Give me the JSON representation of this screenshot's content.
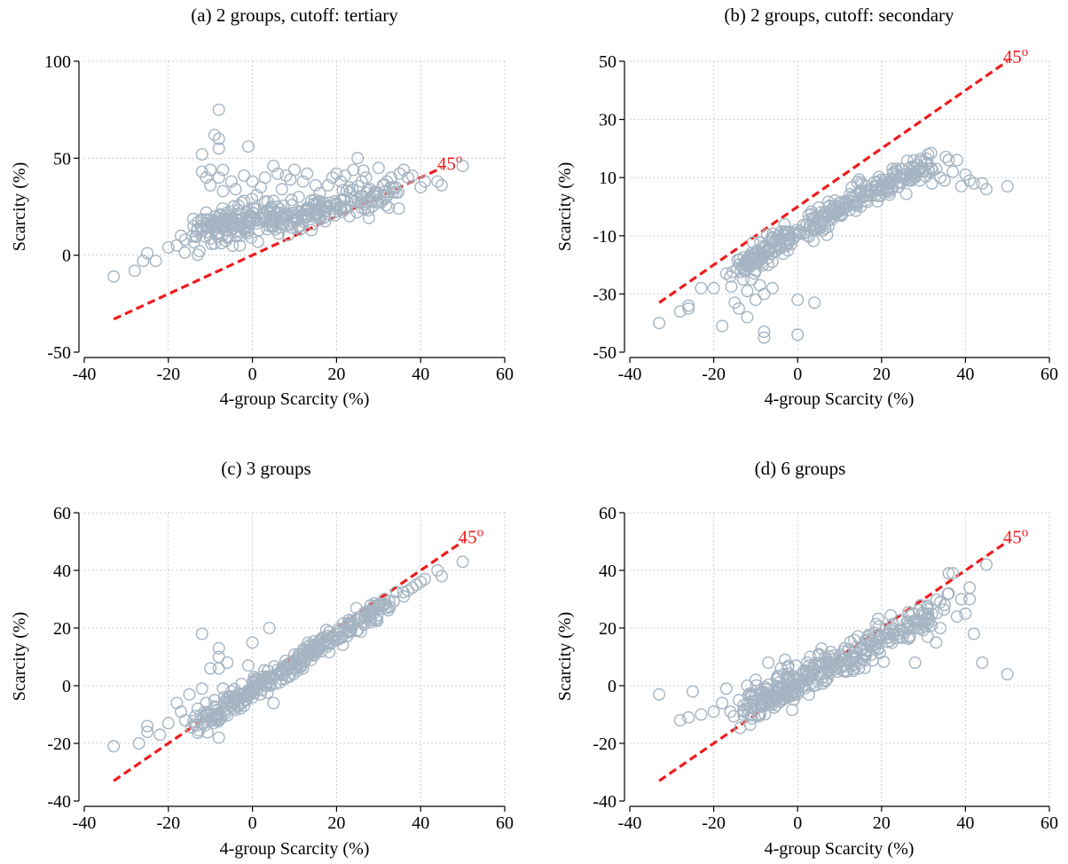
{
  "colors": {
    "marker": "#a5b4c2",
    "reference_line": "#ee1c1c",
    "grid": "#bfbfbf"
  },
  "chart_data": [
    {
      "type": "scatter",
      "title": "(a) 2 groups, cutoff: tertiary",
      "xlabel": "4-group Scarcity (%)",
      "ylabel": "Scarcity (%)",
      "xlim": [
        -40,
        60
      ],
      "ylim": [
        -50,
        100
      ],
      "xticks": [
        -40,
        -20,
        0,
        20,
        40,
        60
      ],
      "yticks": [
        -50,
        0,
        50,
        100
      ],
      "grid": true,
      "reference_line": {
        "label": "45",
        "superscript": "o",
        "from": [
          -33,
          -33
        ],
        "to": [
          45,
          45
        ]
      },
      "generator": {
        "seed": 11,
        "n": 300,
        "slope": 0.55,
        "intercept": 14,
        "noise": 4
      },
      "points": [
        [
          -33,
          -11
        ],
        [
          -28,
          -8
        ],
        [
          -26,
          -3
        ],
        [
          -25,
          1
        ],
        [
          -23,
          -3
        ],
        [
          -20,
          4
        ],
        [
          -18,
          5
        ],
        [
          -17,
          10
        ],
        [
          -16,
          8
        ],
        [
          -14,
          15
        ],
        [
          -13,
          17
        ],
        [
          -12,
          18
        ],
        [
          -12,
          52
        ],
        [
          -12,
          43
        ],
        [
          -11,
          40
        ],
        [
          -11,
          22
        ],
        [
          -10,
          36
        ],
        [
          -10,
          44
        ],
        [
          -9,
          62
        ],
        [
          -9,
          20
        ],
        [
          -9,
          6
        ],
        [
          -8,
          60
        ],
        [
          -8,
          75
        ],
        [
          -8,
          55
        ],
        [
          -8,
          40
        ],
        [
          -7,
          44
        ],
        [
          -7,
          33
        ],
        [
          -6,
          9
        ],
        [
          -6,
          22
        ],
        [
          -5,
          38
        ],
        [
          -5,
          16
        ],
        [
          -4,
          34
        ],
        [
          -4,
          12
        ],
        [
          -3,
          5
        ],
        [
          -2,
          41
        ],
        [
          -2,
          28
        ],
        [
          -1,
          56
        ],
        [
          -1,
          18
        ],
        [
          0,
          38
        ],
        [
          0,
          22
        ],
        [
          1,
          31
        ],
        [
          2,
          35
        ],
        [
          3,
          40
        ],
        [
          4,
          15
        ],
        [
          5,
          46
        ],
        [
          5,
          28
        ],
        [
          6,
          42
        ],
        [
          7,
          34
        ],
        [
          8,
          41
        ],
        [
          9,
          39
        ],
        [
          10,
          44
        ],
        [
          11,
          30
        ],
        [
          12,
          38
        ],
        [
          13,
          42
        ],
        [
          14,
          28
        ],
        [
          15,
          36
        ],
        [
          16,
          32
        ],
        [
          17,
          27
        ],
        [
          18,
          36
        ],
        [
          19,
          40
        ],
        [
          20,
          42
        ],
        [
          21,
          38
        ],
        [
          22,
          41
        ],
        [
          23,
          35
        ],
        [
          24,
          44
        ],
        [
          25,
          50
        ],
        [
          26,
          38
        ],
        [
          27,
          40
        ],
        [
          28,
          34
        ],
        [
          30,
          45
        ],
        [
          31,
          36
        ],
        [
          32,
          38
        ],
        [
          33,
          40
        ],
        [
          34,
          35
        ],
        [
          35,
          42
        ],
        [
          36,
          44
        ],
        [
          37,
          40
        ],
        [
          38,
          41
        ],
        [
          40,
          35
        ],
        [
          41,
          38
        ],
        [
          44,
          38
        ],
        [
          45,
          36
        ],
        [
          50,
          46
        ]
      ]
    },
    {
      "type": "scatter",
      "title": "(b) 2 groups, cutoff: secondary",
      "xlabel": "4-group Scarcity (%)",
      "ylabel": "Scarcity (%)",
      "xlim": [
        -40,
        60
      ],
      "ylim": [
        -50,
        50
      ],
      "xticks": [
        -40,
        -20,
        0,
        20,
        40,
        60
      ],
      "yticks": [
        -50,
        -30,
        -10,
        10,
        30,
        50
      ],
      "grid": true,
      "reference_line": {
        "label": "45",
        "superscript": "o",
        "from": [
          -33,
          -33
        ],
        "to": [
          50,
          50
        ]
      },
      "generator": {
        "seed": 23,
        "n": 320,
        "slope": 0.82,
        "intercept": -9,
        "noise": 2.2
      },
      "points": [
        [
          -33,
          -40
        ],
        [
          -28,
          -36
        ],
        [
          -26,
          -35
        ],
        [
          -26,
          -34
        ],
        [
          -23,
          -28
        ],
        [
          -20,
          -28
        ],
        [
          -18,
          -41
        ],
        [
          -17,
          -23
        ],
        [
          -16,
          -24
        ],
        [
          -15,
          -33
        ],
        [
          -14,
          -35
        ],
        [
          -13,
          -25
        ],
        [
          -12,
          -38
        ],
        [
          -12,
          -29
        ],
        [
          -11,
          -25
        ],
        [
          -10,
          -22
        ],
        [
          -10,
          -32
        ],
        [
          -9,
          -18
        ],
        [
          -9,
          -27
        ],
        [
          -8,
          -30
        ],
        [
          -8,
          -45
        ],
        [
          -8,
          -43
        ],
        [
          -7,
          -20
        ],
        [
          -6,
          -28
        ],
        [
          -5,
          -13
        ],
        [
          -3,
          -10
        ],
        [
          0,
          -44
        ],
        [
          0,
          -32
        ],
        [
          4,
          -33
        ],
        [
          25,
          11
        ],
        [
          27,
          9
        ],
        [
          28,
          10
        ],
        [
          30,
          12
        ],
        [
          31,
          15
        ],
        [
          32,
          8
        ],
        [
          33,
          13
        ],
        [
          34,
          10
        ],
        [
          35,
          9
        ],
        [
          36,
          16
        ],
        [
          37,
          12
        ],
        [
          38,
          16
        ],
        [
          39,
          7
        ],
        [
          40,
          11
        ],
        [
          41,
          9
        ],
        [
          42,
          8
        ],
        [
          44,
          8
        ],
        [
          45,
          6
        ],
        [
          50,
          7
        ]
      ]
    },
    {
      "type": "scatter",
      "title": "(c) 3 groups",
      "xlabel": "4-group Scarcity (%)",
      "ylabel": "Scarcity (%)",
      "xlim": [
        -40,
        60
      ],
      "ylim": [
        -40,
        60
      ],
      "xticks": [
        -40,
        -20,
        0,
        20,
        40,
        60
      ],
      "yticks": [
        -40,
        -20,
        0,
        20,
        40,
        60
      ],
      "grid": true,
      "reference_line": {
        "label": "45",
        "superscript": "o",
        "from": [
          -33,
          -33
        ],
        "to": [
          50,
          50
        ]
      },
      "generator": {
        "seed": 37,
        "n": 320,
        "slope": 0.93,
        "intercept": -1.5,
        "noise": 1.8
      },
      "points": [
        [
          -33,
          -21
        ],
        [
          -27,
          -20
        ],
        [
          -25,
          -16
        ],
        [
          -25,
          -14
        ],
        [
          -22,
          -17
        ],
        [
          -20,
          -13
        ],
        [
          -18,
          -6
        ],
        [
          -17,
          -9
        ],
        [
          -16,
          -12
        ],
        [
          -15,
          -3
        ],
        [
          -13,
          -8
        ],
        [
          -12,
          18
        ],
        [
          -12,
          -1
        ],
        [
          -11,
          -6
        ],
        [
          -10,
          6
        ],
        [
          -9,
          -11
        ],
        [
          -9,
          -5
        ],
        [
          -8,
          13
        ],
        [
          -8,
          10
        ],
        [
          -8,
          6
        ],
        [
          -8,
          -18
        ],
        [
          -7,
          -1
        ],
        [
          -6,
          8
        ],
        [
          -5,
          -2
        ],
        [
          -2,
          -7
        ],
        [
          -1,
          7
        ],
        [
          0,
          15
        ],
        [
          4,
          20
        ],
        [
          5,
          -6
        ],
        [
          36,
          31
        ],
        [
          37,
          33
        ],
        [
          38,
          34
        ],
        [
          39,
          35
        ],
        [
          40,
          36
        ],
        [
          41,
          37
        ],
        [
          44,
          40
        ],
        [
          45,
          38
        ],
        [
          50,
          43
        ]
      ]
    },
    {
      "type": "scatter",
      "title": "(d) 6 groups",
      "xlabel": "4-group Scarcity (%)",
      "ylabel": "Scarcity (%)",
      "xlim": [
        -40,
        60
      ],
      "ylim": [
        -40,
        60
      ],
      "xticks": [
        -40,
        -20,
        0,
        20,
        40,
        60
      ],
      "yticks": [
        -40,
        -20,
        0,
        20,
        40,
        60
      ],
      "grid": true,
      "reference_line": {
        "label": "45",
        "superscript": "o",
        "from": [
          -33,
          -33
        ],
        "to": [
          50,
          50
        ]
      },
      "generator": {
        "seed": 53,
        "n": 320,
        "slope": 0.72,
        "intercept": 1,
        "noise": 3.2
      },
      "points": [
        [
          -33,
          -3
        ],
        [
          -28,
          -12
        ],
        [
          -26,
          -11
        ],
        [
          -25,
          -2
        ],
        [
          -23,
          -10
        ],
        [
          -20,
          -9
        ],
        [
          -18,
          -6
        ],
        [
          -17,
          -1
        ],
        [
          -16,
          -9
        ],
        [
          -14,
          -5
        ],
        [
          -12,
          -8
        ],
        [
          -12,
          0
        ],
        [
          -11,
          -3
        ],
        [
          -10,
          2
        ],
        [
          -9,
          -7
        ],
        [
          -8,
          -4
        ],
        [
          -7,
          8
        ],
        [
          -6,
          -2
        ],
        [
          -5,
          -1
        ],
        [
          -4,
          6
        ],
        [
          -3,
          9
        ],
        [
          -2,
          3
        ],
        [
          0,
          -2
        ],
        [
          3,
          10
        ],
        [
          5,
          11
        ],
        [
          28,
          8
        ],
        [
          30,
          22
        ],
        [
          31,
          17
        ],
        [
          32,
          25
        ],
        [
          33,
          15
        ],
        [
          34,
          20
        ],
        [
          35,
          28
        ],
        [
          36,
          32
        ],
        [
          36,
          39
        ],
        [
          37,
          39
        ],
        [
          38,
          24
        ],
        [
          39,
          30
        ],
        [
          40,
          25
        ],
        [
          41,
          34
        ],
        [
          41,
          30
        ],
        [
          42,
          18
        ],
        [
          44,
          8
        ],
        [
          45,
          42
        ],
        [
          50,
          4
        ]
      ]
    }
  ]
}
